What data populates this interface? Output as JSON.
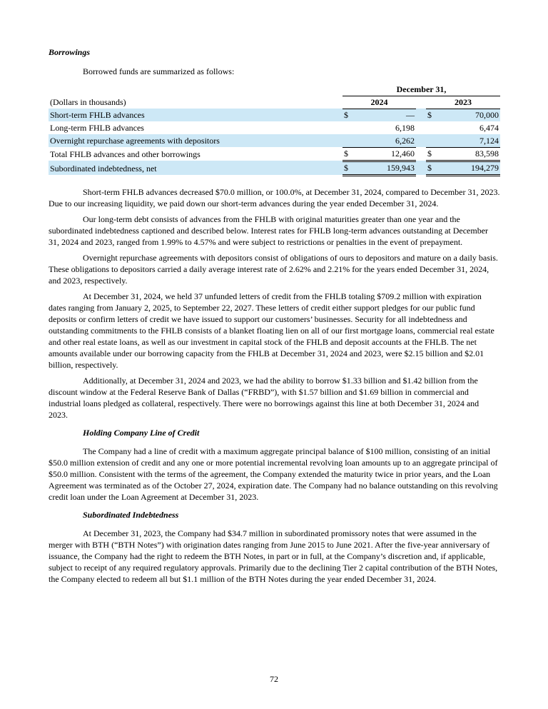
{
  "colors": {
    "row_highlight": "#cde8f6",
    "text": "#000000",
    "page_background": "#ffffff"
  },
  "page": {
    "number": "72"
  },
  "headings": {
    "borrowings": "Borrowings",
    "holding_company": "Holding Company Line of Credit",
    "subordinated": "Subordinated Indebtedness"
  },
  "intro": "Borrowed funds are summarized as follows:",
  "table": {
    "date_header": "December 31,",
    "unit_label": "(Dollars in thousands)",
    "col_2024": "2024",
    "col_2023": "2023",
    "rows": [
      {
        "label": "Short-term FHLB advances",
        "d1": "$",
        "v1": "—",
        "d2": "$",
        "v2": "70,000"
      },
      {
        "label": "Long-term FHLB advances",
        "d1": "",
        "v1": "6,198",
        "d2": "",
        "v2": "6,474"
      },
      {
        "label": "Overnight repurchase agreements with depositors",
        "d1": "",
        "v1": "6,262",
        "d2": "",
        "v2": "7,124"
      },
      {
        "label": "Total FHLB advances and other borrowings",
        "d1": "$",
        "v1": "12,460",
        "d2": "$",
        "v2": "83,598"
      },
      {
        "label": "Subordinated indebtedness, net",
        "d1": "$",
        "v1": "159,943",
        "d2": "$",
        "v2": "194,279"
      }
    ]
  },
  "paragraphs": [
    "Short-term FHLB advances decreased $70.0 million, or 100.0%, at December 31, 2024, compared to December 31, 2023. Due to our increasing liquidity, we paid down our short-term advances during the year ended December 31, 2024.",
    "Our long-term debt consists of advances from the FHLB with original maturities greater than one year and the subordinated indebtedness captioned and described below. Interest rates for FHLB long-term advances outstanding at December 31, 2024 and 2023, ranged from 1.99% to 4.57% and were subject to restrictions or penalties in the event of prepayment.",
    "Overnight repurchase agreements with depositors consist of obligations of ours to depositors and mature on a daily basis. These obligations to depositors carried a daily average interest rate of 2.62% and 2.21% for the years ended December 31, 2024, and 2023, respectively.",
    "At December 31, 2024, we held 37 unfunded letters of credit from the FHLB totaling $709.2 million with expiration dates ranging from January 2, 2025, to September 22, 2027. These letters of credit either support pledges for our public fund deposits or confirm letters of credit we have issued to support our customers’ businesses. Security for all indebtedness and outstanding commitments to the FHLB consists of a blanket floating lien on all of our first mortgage loans, commercial real estate and other real estate loans, as well as our investment in capital stock of the FHLB and deposit accounts at the FHLB. The net amounts available under our borrowing capacity from the FHLB at December 31, 2024 and 2023, were $2.15 billion and $2.01 billion, respectively.",
    "Additionally, at December 31, 2024 and 2023, we had the ability to borrow $1.33 billion and $1.42 billion from the discount window at the Federal Reserve Bank of Dallas (“FRBD”), with $1.57 billion and $1.69 billion in commercial and industrial loans pledged as collateral, respectively. There were no borrowings against this line at both December 31, 2024 and 2023.",
    "The Company had a line of credit with a maximum aggregate principal balance of $100 million, consisting of an initial $50.0 million extension of credit and any one or more potential incremental revolving loan amounts up to an aggregate principal of $50.0 million. Consistent with the terms of the agreement, the Company extended the maturity twice in prior years, and the Loan Agreement was terminated as of the October 27, 2024, expiration date. The Company had no balance outstanding on this revolving credit loan under the Loan Agreement at December 31, 2023.",
    "At December 31, 2023, the Company had $34.7 million in subordinated promissory notes that were assumed in the merger with BTH (“BTH Notes”) with origination dates ranging from June 2015 to June 2021. After the five-year anniversary of issuance, the Company had the right to redeem the BTH Notes, in part or in full, at the Company’s discretion and, if applicable, subject to receipt of any required regulatory approvals. Primarily due to the declining Tier 2 capital contribution of the BTH Notes, the Company elected to redeem all but $1.1 million of the BTH Notes during the year ended December 31, 2024."
  ]
}
